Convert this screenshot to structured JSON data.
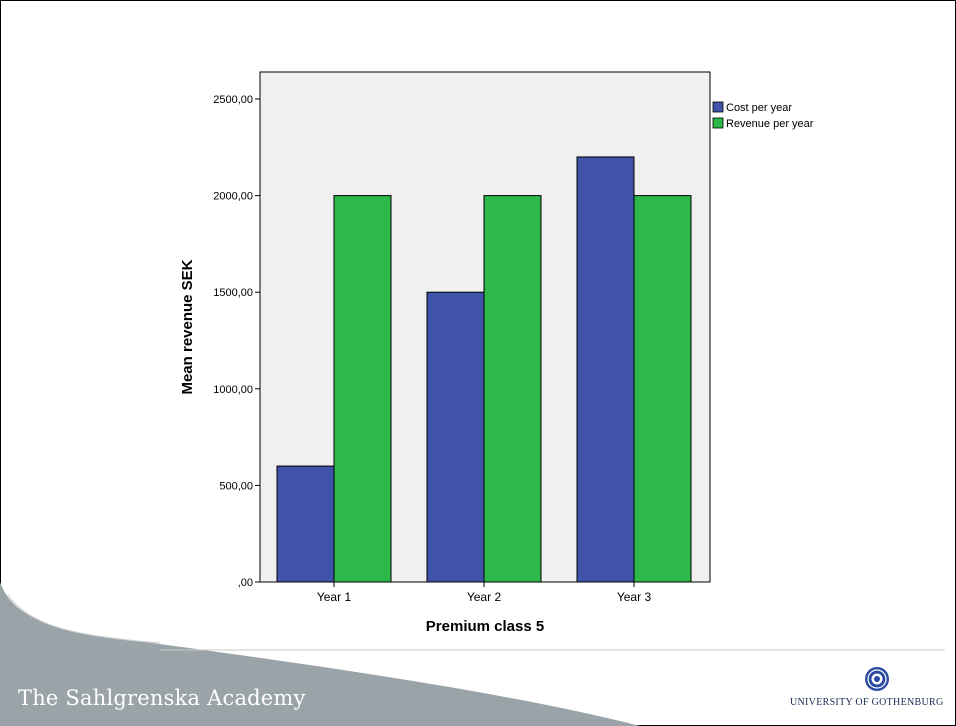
{
  "footer": {
    "academy": "The Sahlgrenska Academy",
    "university": "UNIVERSITY OF GOTHENBURG"
  },
  "colors": {
    "cost": "#3f54a8",
    "revenue": "#2db84a",
    "plot_bg": "#f0f0f0",
    "footer_swoosh": "#9aa3a8"
  },
  "chart_data": {
    "type": "bar",
    "categories": [
      "Year 1",
      "Year 2",
      "Year 3"
    ],
    "series": [
      {
        "name": "Cost per year",
        "values": [
          600,
          1500,
          2200
        ],
        "color": "#3f54a8"
      },
      {
        "name": "Revenue per year",
        "values": [
          2000,
          2000,
          2000
        ],
        "color": "#2db84a"
      }
    ],
    "title": "",
    "xlabel": "Premium class 5",
    "ylabel": "Mean revenue SEK",
    "ylim": [
      0,
      2500
    ],
    "yticks": [
      0,
      500,
      1000,
      1500,
      2000,
      2500
    ],
    "ytick_labels": [
      ",00",
      "500,00",
      "1000,00",
      "1500,00",
      "2000,00",
      "2500,00"
    ],
    "grid": false,
    "legend": "top-right"
  }
}
